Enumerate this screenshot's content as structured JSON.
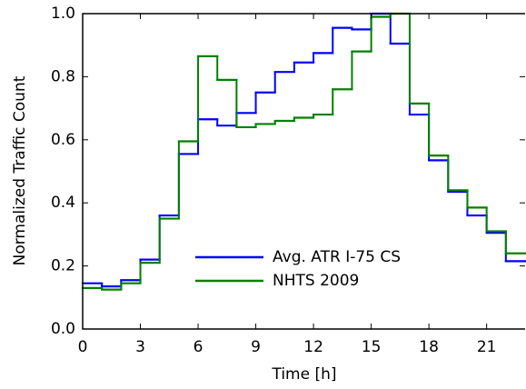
{
  "chart_data": {
    "type": "step",
    "xlabel": "Time [h]",
    "ylabel": "Normalized Traffic Count",
    "x": [
      0,
      1,
      2,
      3,
      4,
      5,
      6,
      7,
      8,
      9,
      10,
      11,
      12,
      13,
      14,
      15,
      16,
      17,
      18,
      19,
      20,
      21,
      22
    ],
    "series": [
      {
        "name": "Avg. ATR I-75 CS",
        "color": "#0000ff",
        "values": [
          0.145,
          0.135,
          0.155,
          0.22,
          0.36,
          0.555,
          0.665,
          0.645,
          0.685,
          0.75,
          0.815,
          0.845,
          0.875,
          0.955,
          0.95,
          1.0,
          0.905,
          0.68,
          0.535,
          0.435,
          0.36,
          0.305,
          0.215
        ]
      },
      {
        "name": "NHTS 2009",
        "color": "#008000",
        "values": [
          0.13,
          0.125,
          0.145,
          0.21,
          0.35,
          0.595,
          0.865,
          0.79,
          0.64,
          0.65,
          0.66,
          0.67,
          0.68,
          0.76,
          0.88,
          0.99,
          1.0,
          0.715,
          0.55,
          0.44,
          0.385,
          0.31,
          0.24
        ]
      }
    ],
    "xlim": [
      0,
      23
    ],
    "ylim": [
      0,
      1
    ],
    "xticks": [
      0,
      3,
      6,
      9,
      12,
      15,
      18,
      21
    ],
    "yticks": [
      {
        "value": 0,
        "label": "0.0"
      },
      {
        "value": 0.2,
        "label": "0.2"
      },
      {
        "value": 0.4,
        "label": "0.4"
      },
      {
        "value": 0.6,
        "label": "0.6"
      },
      {
        "value": 0.8,
        "label": "0.8"
      },
      {
        "value": 1,
        "label": "1.0"
      }
    ],
    "legend": "lower center"
  }
}
